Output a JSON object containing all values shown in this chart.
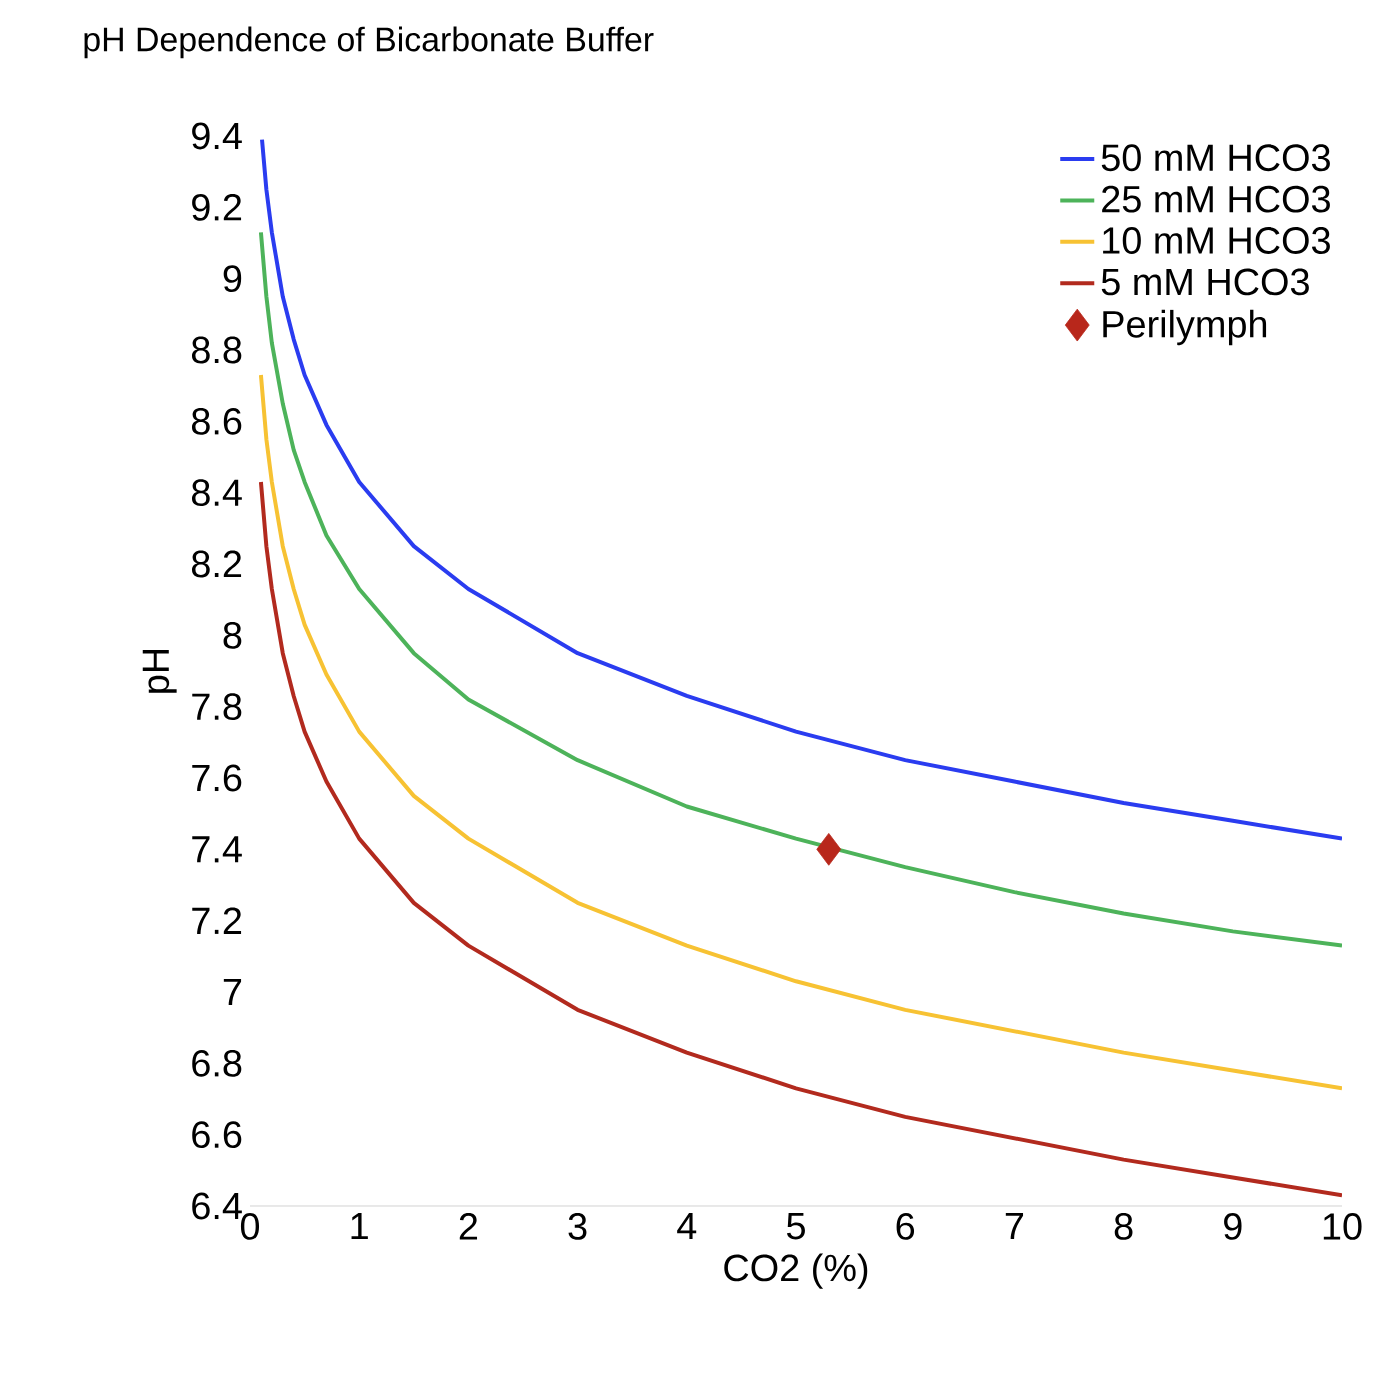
{
  "chart_data": {
    "type": "line",
    "title": "pH Dependence of Bicarbonate Buffer",
    "xlabel": "CO2 (%)",
    "ylabel": "pH",
    "xlim": [
      0,
      10
    ],
    "xticks": [
      0,
      1,
      2,
      3,
      4,
      5,
      6,
      7,
      8,
      9,
      10
    ],
    "ylim": [
      6.4,
      9.4
    ],
    "yticks": [
      6.4,
      6.6,
      6.8,
      7,
      7.2,
      7.4,
      7.6,
      7.8,
      8,
      8.2,
      8.4,
      8.6,
      8.8,
      9,
      9.2,
      9.4
    ],
    "grid": false,
    "legend": "top right",
    "marker": "none",
    "line_style": "solid",
    "series": [
      {
        "name": "50 mM HCO3",
        "color": "#2a3cf0",
        "x": [
          0.11,
          0.15,
          0.2,
          0.3,
          0.4,
          0.5,
          0.7,
          1,
          1.5,
          2,
          3,
          4,
          5,
          6,
          7,
          8,
          9,
          10
        ],
        "values": [
          9.39,
          9.25,
          9.13,
          8.95,
          8.83,
          8.73,
          8.59,
          8.43,
          8.25,
          8.13,
          7.95,
          7.83,
          7.73,
          7.65,
          7.59,
          7.53,
          7.48,
          7.43
        ]
      },
      {
        "name": "25 mM HCO3",
        "color": "#4db35a",
        "x": [
          0.1,
          0.15,
          0.2,
          0.3,
          0.4,
          0.5,
          0.7,
          1,
          1.5,
          2,
          3,
          4,
          5,
          6,
          7,
          8,
          9,
          10
        ],
        "values": [
          9.13,
          8.95,
          8.82,
          8.65,
          8.52,
          8.43,
          8.28,
          8.13,
          7.95,
          7.82,
          7.65,
          7.52,
          7.43,
          7.35,
          7.28,
          7.22,
          7.17,
          7.13
        ]
      },
      {
        "name": "10 mM HCO3",
        "color": "#f7c233",
        "x": [
          0.1,
          0.15,
          0.2,
          0.3,
          0.4,
          0.5,
          0.7,
          1,
          1.5,
          2,
          3,
          4,
          5,
          6,
          7,
          8,
          9,
          10
        ],
        "values": [
          8.73,
          8.55,
          8.43,
          8.25,
          8.13,
          8.03,
          7.89,
          7.73,
          7.55,
          7.43,
          7.25,
          7.13,
          7.03,
          6.95,
          6.89,
          6.83,
          6.78,
          6.73
        ]
      },
      {
        "name": "5 mM HCO3",
        "color": "#b22a1e",
        "x": [
          0.1,
          0.15,
          0.2,
          0.3,
          0.4,
          0.5,
          0.7,
          1,
          1.5,
          2,
          3,
          4,
          5,
          6,
          7,
          8,
          9,
          10
        ],
        "values": [
          8.43,
          8.25,
          8.13,
          7.95,
          7.83,
          7.73,
          7.59,
          7.43,
          7.25,
          7.13,
          6.95,
          6.83,
          6.73,
          6.65,
          6.59,
          6.53,
          6.48,
          6.43
        ]
      },
      {
        "name": "Perilymph",
        "type": "scatter",
        "marker": "diamond",
        "color": "#b8271b",
        "x": [
          5.3
        ],
        "values": [
          7.4
        ]
      }
    ]
  }
}
